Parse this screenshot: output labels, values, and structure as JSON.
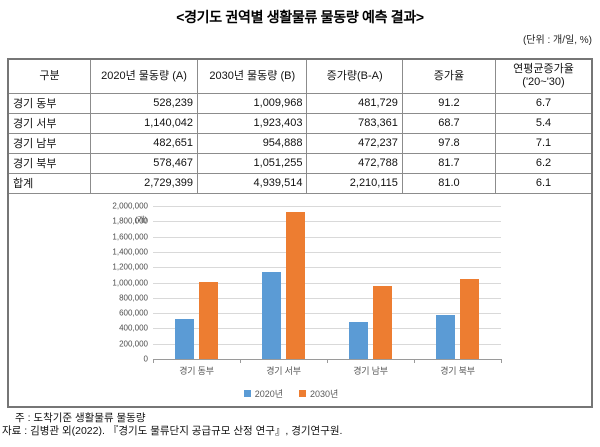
{
  "title": "<경기도 권역별 생활물류 물동량 예측 결과>",
  "unit_note": "(단위 : 개/일, %)",
  "table": {
    "headers": [
      "구분",
      "2020년 물동량 (A)",
      "2030년 물동량 (B)",
      "증가량(B-A)",
      "증가율",
      "연평균증가율\n('20~'30)"
    ],
    "rows": [
      [
        "경기 동부",
        "528,239",
        "1,009,968",
        "481,729",
        "91.2",
        "6.7"
      ],
      [
        "경기 서부",
        "1,140,042",
        "1,923,403",
        "783,361",
        "68.7",
        "5.4"
      ],
      [
        "경기 남부",
        "482,651",
        "954,888",
        "472,237",
        "97.8",
        "7.1"
      ],
      [
        "경기 북부",
        "578,467",
        "1,051,255",
        "472,788",
        "81.7",
        "6.2"
      ],
      [
        "합계",
        "2,729,399",
        "4,939,514",
        "2,210,115",
        "81.0",
        "6.1"
      ]
    ]
  },
  "chart_data": {
    "type": "bar",
    "categories": [
      "경기 동부",
      "경기 서부",
      "경기 남부",
      "경기 북부"
    ],
    "series": [
      {
        "name": "2020년",
        "color": "#5B9BD5",
        "values": [
          528239,
          1140042,
          482651,
          578467
        ]
      },
      {
        "name": "2030년",
        "color": "#ED7D31",
        "values": [
          1009968,
          1923403,
          954888,
          1051255
        ]
      }
    ],
    "title": "",
    "xlabel": "",
    "ylabel": "(개)",
    "ylim": [
      0,
      2000000
    ],
    "ytick_step": 200000,
    "yticks": [
      "2,000,000",
      "1,800,000",
      "1,600,000",
      "1,400,000",
      "1,200,000",
      "1,000,000",
      "800,000",
      "600,000",
      "400,000",
      "200,000",
      "0"
    ],
    "grid": true,
    "legend_position": "bottom"
  },
  "footnotes": {
    "note": "주 : 도착기준 생활물류 물동량",
    "source": "자료 : 김병관 외(2022). 『경기도 물류단지 공급규모 산정 연구』, 경기연구원."
  }
}
